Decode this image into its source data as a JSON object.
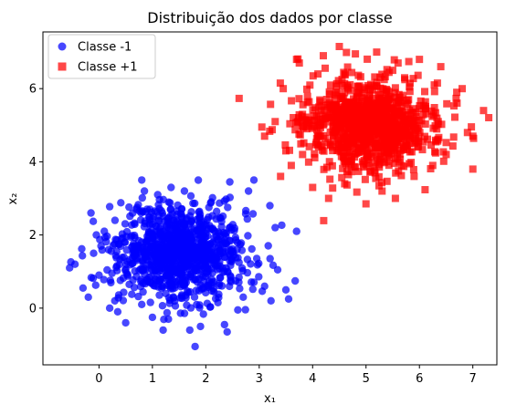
{
  "chart_data": {
    "type": "scatter",
    "title": "Distribuição dos dados por classe",
    "xlabel": "x₁",
    "ylabel": "x₂",
    "xlim": [
      -1.05,
      7.45
    ],
    "ylim": [
      -1.55,
      7.55
    ],
    "xticks": [
      0,
      1,
      2,
      3,
      4,
      5,
      6,
      7
    ],
    "yticks": [
      0,
      2,
      4,
      6
    ],
    "grid": false,
    "legend_position": "top-left",
    "series": [
      {
        "name": "Classe -1",
        "color": "#0000ff",
        "marker": "circle",
        "center": [
          1.5,
          1.5
        ],
        "spread": 0.62,
        "count": 1000,
        "points": [
          [
            -0.55,
            1.1
          ],
          [
            -0.45,
            1.2
          ],
          [
            -0.3,
            0.55
          ],
          [
            -0.2,
            0.3
          ],
          [
            -0.15,
            2.6
          ],
          [
            -0.1,
            1.5
          ],
          [
            -0.05,
            2.0
          ],
          [
            0.0,
            0.9
          ],
          [
            0.1,
            2.1
          ],
          [
            0.2,
            0.0
          ],
          [
            0.3,
            2.4
          ],
          [
            0.35,
            -0.1
          ],
          [
            0.5,
            -0.4
          ],
          [
            0.7,
            2.7
          ],
          [
            0.8,
            0.1
          ],
          [
            0.85,
            3.2
          ],
          [
            0.8,
            3.5
          ],
          [
            1.0,
            -0.25
          ],
          [
            1.1,
            3.1
          ],
          [
            1.2,
            -0.6
          ],
          [
            1.3,
            -0.3
          ],
          [
            1.35,
            3.3
          ],
          [
            1.6,
            3.2
          ],
          [
            1.7,
            -0.6
          ],
          [
            1.8,
            -1.05
          ],
          [
            1.9,
            -0.5
          ],
          [
            2.1,
            2.9
          ],
          [
            2.35,
            -0.45
          ],
          [
            2.4,
            -0.65
          ],
          [
            2.45,
            3.45
          ],
          [
            2.6,
            -0.05
          ],
          [
            2.7,
            0.3
          ],
          [
            2.8,
            3.2
          ],
          [
            2.9,
            3.5
          ],
          [
            3.1,
            0.6
          ],
          [
            3.2,
            2.8
          ],
          [
            3.3,
            2.2
          ],
          [
            3.5,
            0.5
          ],
          [
            3.55,
            0.25
          ],
          [
            3.7,
            2.1
          ]
        ]
      },
      {
        "name": "Classe +1",
        "color": "#ff0000",
        "marker": "square",
        "center": [
          5.0,
          5.0
        ],
        "spread": 0.62,
        "count": 1000,
        "points": [
          [
            3.05,
            4.95
          ],
          [
            3.1,
            4.7
          ],
          [
            3.3,
            5.1
          ],
          [
            3.4,
            3.6
          ],
          [
            3.45,
            6.0
          ],
          [
            3.5,
            4.3
          ],
          [
            3.6,
            3.9
          ],
          [
            3.7,
            6.8
          ],
          [
            3.75,
            6.7
          ],
          [
            4.0,
            3.3
          ],
          [
            4.1,
            6.4
          ],
          [
            4.2,
            6.9
          ],
          [
            4.3,
            3.0
          ],
          [
            4.5,
            7.15
          ],
          [
            4.6,
            3.4
          ],
          [
            4.8,
            6.95
          ],
          [
            5.0,
            2.85
          ],
          [
            5.2,
            7.0
          ],
          [
            5.3,
            3.2
          ],
          [
            5.5,
            6.5
          ],
          [
            5.55,
            3.0
          ],
          [
            5.6,
            6.7
          ],
          [
            5.9,
            3.6
          ],
          [
            6.0,
            6.8
          ],
          [
            6.25,
            3.9
          ],
          [
            6.4,
            6.6
          ],
          [
            6.5,
            4.2
          ],
          [
            6.7,
            5.9
          ],
          [
            6.8,
            6.0
          ],
          [
            6.9,
            4.8
          ],
          [
            7.0,
            3.8
          ],
          [
            7.0,
            4.7
          ],
          [
            7.2,
            5.4
          ]
        ]
      }
    ]
  }
}
